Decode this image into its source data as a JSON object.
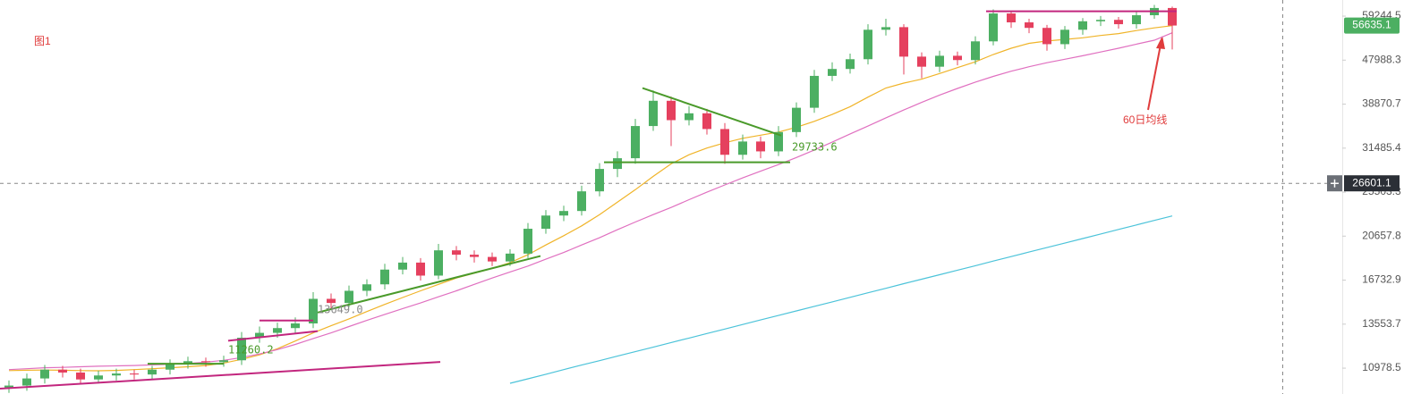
{
  "chart_data": {
    "type": "candlestick",
    "log_scale": true,
    "grid": false,
    "ylim": [
      9700,
      64000
    ],
    "yticks": [
      10978.5,
      13553.7,
      16732.9,
      20657.8,
      25503.3,
      31485.4,
      38870.7,
      47988.3,
      59244.5
    ],
    "up_color": "#4caf62",
    "down_color": "#e5405e",
    "open": [
      10000,
      10100,
      10450,
      10900,
      10750,
      10400,
      10600,
      10700,
      10650,
      10900,
      11200,
      11350,
      11300,
      11400,
      12700,
      13000,
      13300,
      13600,
      15300,
      15000,
      15900,
      16400,
      17600,
      18200,
      17100,
      19300,
      18900,
      18700,
      18300,
      19000,
      21400,
      22800,
      23300,
      25600,
      28500,
      30000,
      35000,
      39500,
      36000,
      37200,
      34500,
      30500,
      32500,
      31000,
      34000,
      38200,
      44500,
      46000,
      48200,
      55500,
      56200,
      48800,
      46500,
      49000,
      48000,
      52500,
      60000,
      57500,
      56000,
      51800,
      55500,
      57800,
      58200,
      57000,
      59500,
      61600
    ],
    "high": [
      10350,
      10700,
      11150,
      11100,
      10950,
      10850,
      10950,
      10900,
      11100,
      11450,
      11600,
      11550,
      11650,
      13050,
      13400,
      13650,
      14000,
      15800,
      15700,
      16300,
      16800,
      18100,
      18700,
      18600,
      19900,
      19700,
      19300,
      19100,
      19400,
      22000,
      23400,
      23900,
      26300,
      29300,
      31000,
      36200,
      41500,
      40300,
      38500,
      38000,
      35500,
      33600,
      33300,
      35000,
      39200,
      45800,
      47500,
      49500,
      57000,
      58500,
      57000,
      49800,
      50200,
      50000,
      53800,
      61200,
      60800,
      58500,
      56800,
      56500,
      58700,
      59300,
      59000,
      60500,
      62500,
      62000
    ],
    "low": [
      9750,
      9850,
      10200,
      10500,
      10150,
      10200,
      10350,
      10400,
      10400,
      10650,
      10950,
      11050,
      11050,
      11150,
      12400,
      12700,
      13000,
      13300,
      14600,
      14700,
      15500,
      16000,
      17200,
      16700,
      16800,
      18400,
      18200,
      17900,
      17900,
      18600,
      20900,
      22200,
      22800,
      25000,
      27400,
      29200,
      34200,
      31800,
      35100,
      33600,
      29200,
      29800,
      30000,
      30300,
      33200,
      37300,
      43400,
      45000,
      47000,
      54000,
      44800,
      44000,
      45300,
      46800,
      47000,
      51500,
      56000,
      54600,
      50200,
      50600,
      54200,
      56500,
      55800,
      55800,
      58500,
      50500
    ],
    "close": [
      10100,
      10450,
      10900,
      10750,
      10400,
      10600,
      10700,
      10650,
      10900,
      11200,
      11350,
      11300,
      11400,
      12700,
      13000,
      13300,
      13600,
      15300,
      15000,
      15900,
      16400,
      17600,
      18200,
      17100,
      19300,
      18900,
      18700,
      18300,
      19000,
      21400,
      22800,
      23300,
      25600,
      28500,
      30000,
      35000,
      39500,
      36000,
      37200,
      34500,
      30500,
      32500,
      31000,
      34000,
      38200,
      44500,
      46000,
      48200,
      55500,
      56200,
      48800,
      46500,
      49000,
      48000,
      52500,
      60000,
      57500,
      56000,
      51800,
      55500,
      57800,
      58200,
      57000,
      59500,
      61600,
      56635
    ],
    "lines": [
      {
        "color": "#f0b429",
        "values": [
          10850,
          10870,
          10880,
          10870,
          10850,
          10840,
          10860,
          10900,
          10950,
          11000,
          11050,
          11120,
          11250,
          11450,
          11700,
          12050,
          12500,
          13000,
          13450,
          13900,
          14400,
          14900,
          15400,
          15900,
          16400,
          16900,
          17300,
          17700,
          18200,
          18900,
          19800,
          20700,
          21700,
          22900,
          24300,
          25800,
          27500,
          29200,
          30500,
          31500,
          32300,
          33000,
          33500,
          34000,
          34800,
          35800,
          37000,
          38400,
          40200,
          42000,
          43000,
          43800,
          45000,
          46300,
          47600,
          49300,
          50800,
          52000,
          52600,
          53000,
          53400,
          54000,
          54500,
          55300,
          56000,
          56600
        ]
      },
      {
        "color": "#e070c0",
        "values": [
          10900,
          10950,
          11000,
          11020,
          11050,
          11080,
          11100,
          11120,
          11150,
          11180,
          11230,
          11300,
          11400,
          11550,
          11750,
          12000,
          12300,
          12650,
          13000,
          13400,
          13800,
          14200,
          14600,
          15000,
          15450,
          15900,
          16400,
          16900,
          17400,
          17900,
          18500,
          19100,
          19800,
          20500,
          21300,
          22100,
          22900,
          23700,
          24600,
          25500,
          26400,
          27300,
          28200,
          29100,
          30100,
          31200,
          32400,
          33700,
          35000,
          36400,
          37800,
          39200,
          40600,
          41900,
          43200,
          44400,
          45500,
          46500,
          47400,
          48200,
          49000,
          49900,
          50800,
          51800,
          52800,
          54700
        ]
      },
      {
        "color": "#4cc3d9",
        "values": [
          null,
          null,
          null,
          null,
          null,
          null,
          null,
          null,
          null,
          null,
          null,
          null,
          null,
          null,
          null,
          null,
          null,
          null,
          null,
          null,
          null,
          null,
          null,
          null,
          null,
          null,
          null,
          null,
          10210,
          10430,
          10660,
          10900,
          11140,
          11380,
          11630,
          11880,
          12140,
          12410,
          12680,
          12960,
          13240,
          13530,
          13830,
          14130,
          14440,
          14760,
          15080,
          15410,
          15750,
          16090,
          16450,
          16810,
          17170,
          17550,
          17930,
          18330,
          18730,
          19140,
          19560,
          19980,
          20420,
          20870,
          21330,
          21790,
          22270,
          22760
        ]
      }
    ],
    "drawings": [
      {
        "color": "#c2267e",
        "x": [
          -0.5,
          24.1
        ],
        "y": [
          9950,
          11310
        ]
      },
      {
        "color": "#4a9a2a",
        "x": [
          7.75,
          12
        ],
        "y": [
          11210,
          11210
        ]
      },
      {
        "color": "#c2267e",
        "x": [
          12.25,
          17.25
        ],
        "y": [
          12520,
          13110
        ]
      },
      {
        "color": "#c2267e",
        "x": [
          14,
          17
        ],
        "y": [
          13790,
          13790
        ]
      },
      {
        "color": "#4a9a2a",
        "x": [
          17.25,
          29.7
        ],
        "y": [
          14330,
          18780
        ]
      },
      {
        "color": "#4a9a2a",
        "x": [
          35.4,
          43.15
        ],
        "y": [
          41980,
          33450
        ]
      },
      {
        "color": "#4a9a2a",
        "x": [
          33.25,
          43.65
        ],
        "y": [
          29430,
          29430
        ]
      },
      {
        "color": "#c2267e",
        "x": [
          54.6,
          65.25
        ],
        "y": [
          60620,
          60620
        ]
      }
    ],
    "price_labels": [
      {
        "value": 29733.6,
        "label": "29733.6",
        "color": "#4a9a2a"
      },
      {
        "value": 13649,
        "label": "13649.0",
        "color": "#8a8a8a"
      },
      {
        "value": 11260.2,
        "label": "11260.2",
        "color": "#4a9a2a"
      }
    ],
    "last_price": {
      "value": 56635.1,
      "label": "56635.1"
    },
    "crosshair_price": {
      "value": 26601.1,
      "label": "26601.1"
    },
    "annotations": [
      "图1",
      "60日均线"
    ]
  }
}
